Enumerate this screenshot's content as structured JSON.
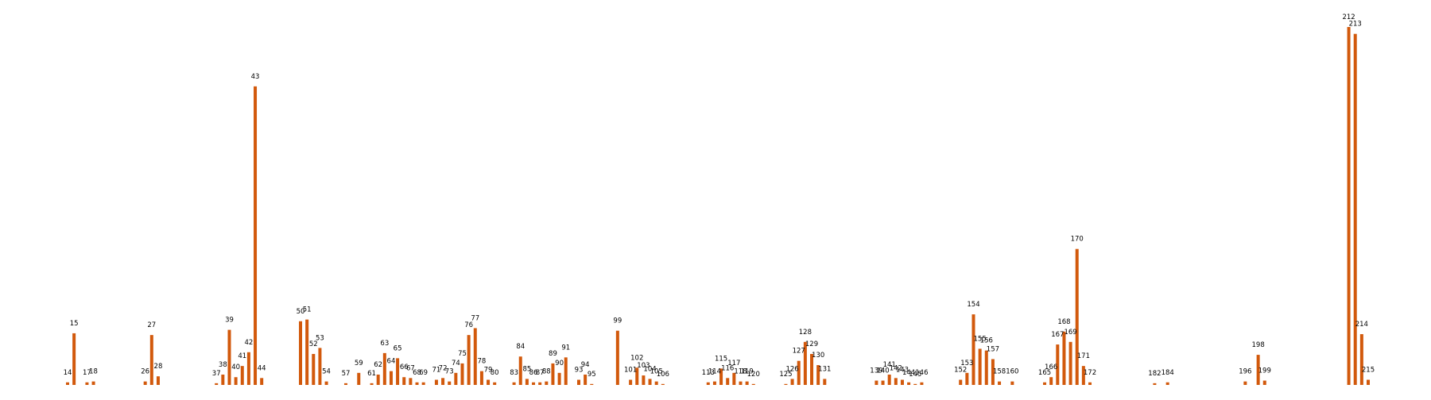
{
  "chart_data": {
    "type": "bar",
    "title": "",
    "xlabel": "",
    "ylabel": "",
    "color": "#d2590c",
    "axes_visible": false,
    "grid": false,
    "x_range": [
      0,
      223
    ],
    "ylim": [
      0,
      1.0
    ],
    "x": [
      14,
      15,
      17,
      18,
      26,
      27,
      28,
      37,
      38,
      39,
      40,
      41,
      42,
      43,
      44,
      50,
      51,
      52,
      53,
      54,
      57,
      59,
      61,
      62,
      63,
      64,
      65,
      66,
      67,
      68,
      69,
      71,
      72,
      73,
      74,
      75,
      76,
      77,
      78,
      79,
      80,
      83,
      84,
      85,
      86,
      87,
      88,
      89,
      90,
      91,
      93,
      94,
      95,
      99,
      101,
      102,
      103,
      104,
      105,
      106,
      113,
      114,
      115,
      116,
      117,
      118,
      119,
      120,
      125,
      126,
      127,
      128,
      129,
      130,
      131,
      139,
      140,
      141,
      142,
      143,
      144,
      145,
      146,
      152,
      153,
      154,
      155,
      156,
      157,
      158,
      160,
      165,
      166,
      167,
      168,
      169,
      170,
      171,
      172,
      182,
      184,
      196,
      198,
      199,
      212,
      213,
      214,
      215
    ],
    "values": [
      0.0068,
      0.1364,
      0.0068,
      0.0091,
      0.0091,
      0.1318,
      0.0227,
      0.0045,
      0.0273,
      0.1455,
      0.0205,
      0.05,
      0.0864,
      0.7886,
      0.0182,
      0.1682,
      0.1727,
      0.0818,
      0.0977,
      0.0091,
      0.0045,
      0.0318,
      0.0045,
      0.0273,
      0.0841,
      0.0364,
      0.0705,
      0.0205,
      0.0182,
      0.0068,
      0.0068,
      0.0136,
      0.0182,
      0.0091,
      0.0318,
      0.0568,
      0.1318,
      0.15,
      0.0364,
      0.0136,
      0.0068,
      0.0068,
      0.075,
      0.0159,
      0.0068,
      0.0068,
      0.0091,
      0.0568,
      0.0318,
      0.0727,
      0.0136,
      0.0273,
      0.0023,
      0.1432,
      0.0136,
      0.0455,
      0.025,
      0.0159,
      0.0091,
      0.0023,
      0.0068,
      0.0091,
      0.0432,
      0.0182,
      0.0318,
      0.0091,
      0.0091,
      0.0023,
      0.0023,
      0.0159,
      0.0636,
      0.1136,
      0.0818,
      0.0523,
      0.0159,
      0.0114,
      0.0114,
      0.0273,
      0.0182,
      0.0136,
      0.0068,
      0.0023,
      0.0068,
      0.0136,
      0.0318,
      0.1864,
      0.0955,
      0.0909,
      0.0682,
      0.0091,
      0.0091,
      0.0068,
      0.0205,
      0.1068,
      0.1409,
      0.1136,
      0.3591,
      0.05,
      0.0068,
      0.0045,
      0.0068,
      0.0091,
      0.0795,
      0.0114,
      0.9455,
      0.9273,
      0.1341,
      0.0136
    ],
    "labels": [
      "14",
      "15",
      "17",
      "18",
      "26",
      "27",
      "28",
      "37",
      "38",
      "39",
      "40",
      "41",
      "42",
      "43",
      "44",
      "50",
      "51",
      "52",
      "53",
      "54",
      "57",
      "59",
      "61",
      "62",
      "63",
      "64",
      "65",
      "66",
      "67",
      "68",
      "69",
      "71",
      "72",
      "73",
      "74",
      "75",
      "76",
      "77",
      "78",
      "79",
      "80",
      "83",
      "84",
      "85",
      "86",
      "87",
      "88",
      "89",
      "90",
      "91",
      "93",
      "94",
      "95",
      "99",
      "101",
      "102",
      "103",
      "104",
      "105",
      "106",
      "113",
      "114",
      "115",
      "116",
      "117",
      "118",
      "119",
      "120",
      "125",
      "126",
      "127",
      "128",
      "129",
      "130",
      "131",
      "139",
      "140",
      "141",
      "142",
      "143",
      "144",
      "145",
      "146",
      "152",
      "153",
      "154",
      "155",
      "156",
      "157",
      "158",
      "160",
      "165",
      "166",
      "167",
      "168",
      "169",
      "170",
      "171",
      "172",
      "182",
      "184",
      "196",
      "198",
      "199",
      "212",
      "213",
      "214",
      "215"
    ]
  }
}
